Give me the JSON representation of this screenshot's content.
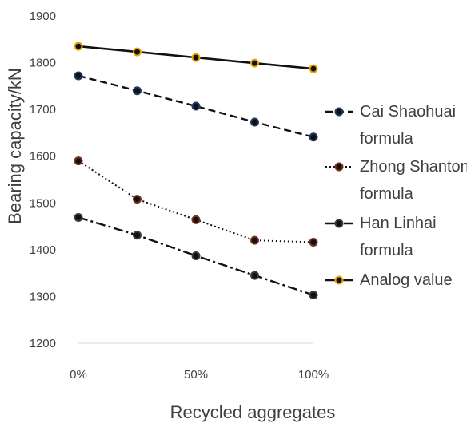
{
  "chart_data": {
    "type": "line",
    "x": [
      "0%",
      "25%",
      "50%",
      "75%",
      "100%"
    ],
    "xlabel": "Recycled aggregates",
    "ylabel": "Bearing capacity/kN",
    "ylim": [
      1200,
      1900
    ],
    "yticks": [
      "1200",
      "1300",
      "1400",
      "1500",
      "1600",
      "1700",
      "1800",
      "1900"
    ],
    "xticks": [
      "0%",
      "50%",
      "100%"
    ],
    "grid": false,
    "legend_position": "right",
    "series": [
      {
        "name_lines": [
          "Cai Shaohuai",
          "formula"
        ],
        "values": [
          1772,
          1740,
          1707,
          1673,
          1641
        ],
        "line_style": "dashed",
        "marker_color": "#1f3a5f"
      },
      {
        "name_lines": [
          "Zhong Shantong",
          "formula"
        ],
        "values": [
          1590,
          1508,
          1464,
          1420,
          1416
        ],
        "line_style": "dotted",
        "marker_color": "#7a2e1a"
      },
      {
        "name_lines": [
          "Han Linhai",
          "formula"
        ],
        "values": [
          1469,
          1431,
          1387,
          1345,
          1303
        ],
        "line_style": "dash-dot",
        "marker_color": "#3a3a3a"
      },
      {
        "name_lines": [
          "Analog value"
        ],
        "values": [
          1835,
          1823,
          1811,
          1799,
          1787
        ],
        "line_style": "solid",
        "marker_color": "#e6a800"
      }
    ]
  }
}
